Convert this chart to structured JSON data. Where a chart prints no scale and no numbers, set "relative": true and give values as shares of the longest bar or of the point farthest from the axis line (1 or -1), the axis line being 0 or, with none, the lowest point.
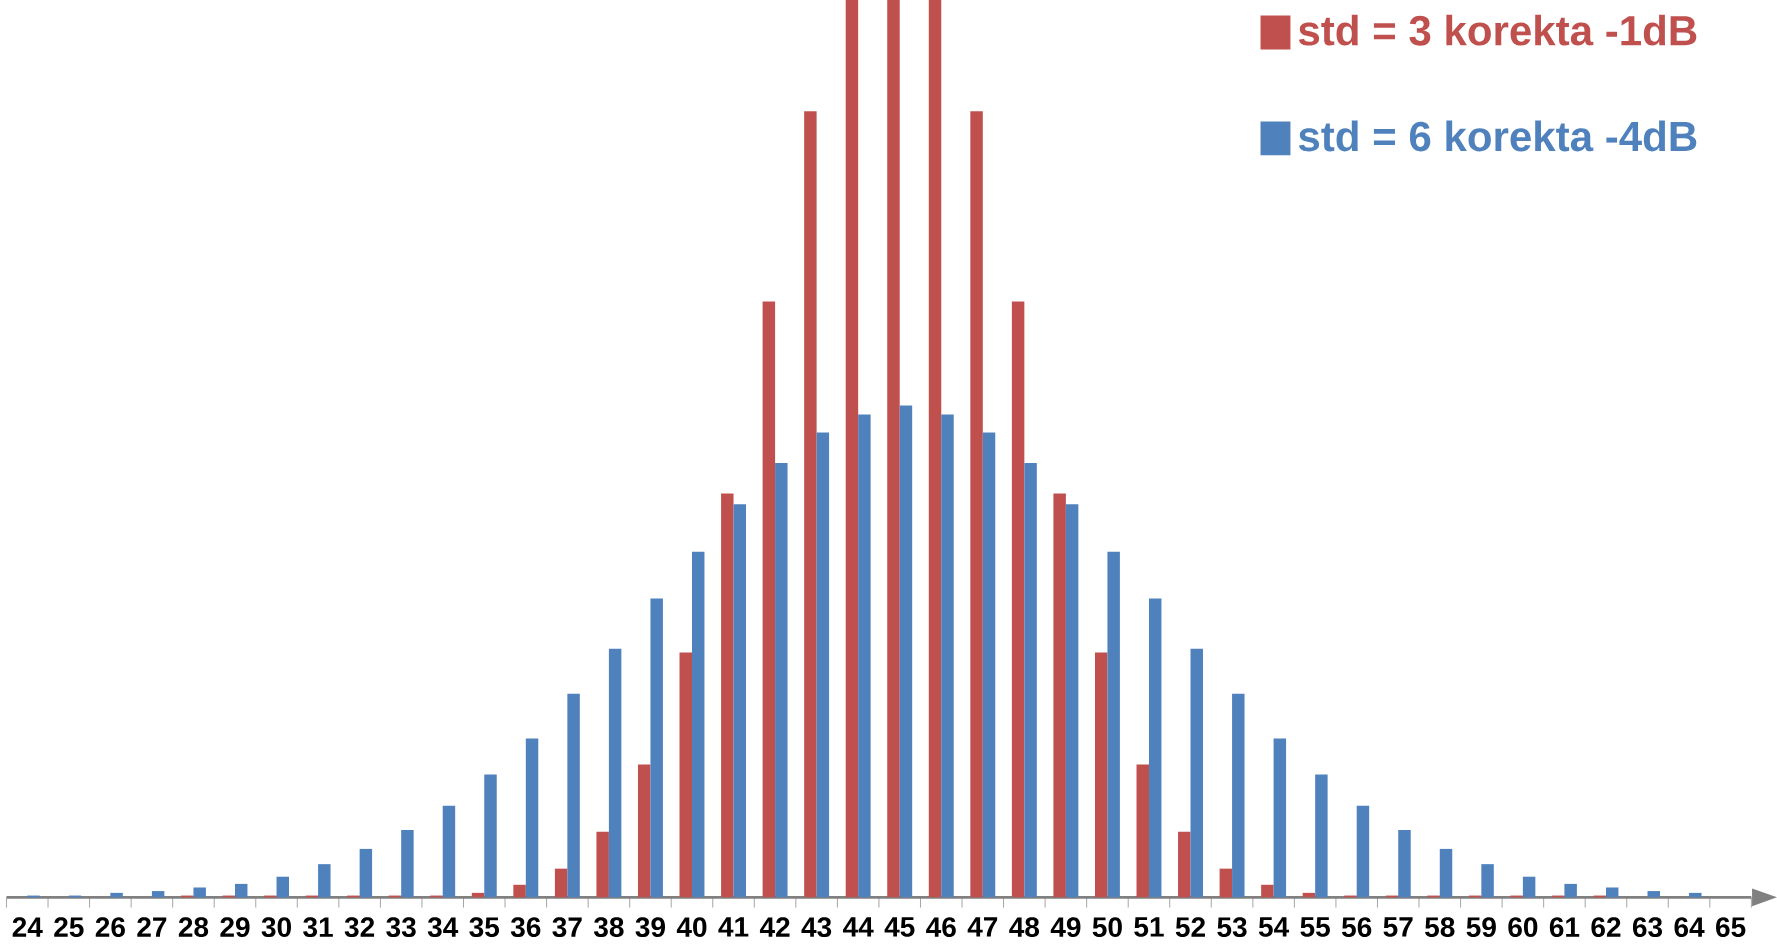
{
  "chart_data": {
    "type": "bar",
    "relative": true,
    "legend": "top right",
    "categories": [
      "24",
      "25",
      "26",
      "27",
      "28",
      "29",
      "30",
      "31",
      "32",
      "33",
      "34",
      "35",
      "36",
      "37",
      "38",
      "39",
      "40",
      "41",
      "42",
      "43",
      "44",
      "45",
      "46",
      "47",
      "48",
      "49",
      "50",
      "51",
      "52",
      "53",
      "54",
      "55",
      "56",
      "57",
      "58",
      "59",
      "60",
      "61",
      "62",
      "63",
      "64",
      "65"
    ],
    "series": [
      {
        "name": "std = 3 korekta -1dB",
        "color": "#c0504d",
        "values": [
          0,
          0,
          0,
          0,
          0.002,
          0.002,
          0.002,
          0.002,
          0.002,
          0.002,
          0.002,
          0.005,
          0.014,
          0.032,
          0.073,
          0.148,
          0.273,
          0.45,
          0.664,
          0.876,
          1,
          1,
          1,
          0.876,
          0.664,
          0.45,
          0.273,
          0.148,
          0.073,
          0.032,
          0.014,
          0.005,
          0.002,
          0.002,
          0.002,
          0.002,
          0.002,
          0.002,
          0.002,
          0,
          0,
          0
        ]
      },
      {
        "name": "std = 6 korekta -4dB",
        "color": "#4f81bd",
        "values": [
          0.002,
          0.002,
          0.005,
          0.007,
          0.011,
          0.015,
          0.023,
          0.037,
          0.054,
          0.075,
          0.102,
          0.137,
          0.177,
          0.227,
          0.277,
          0.333,
          0.385,
          0.438,
          0.484,
          0.518,
          0.538,
          0.548,
          0.538,
          0.518,
          0.484,
          0.438,
          0.385,
          0.333,
          0.277,
          0.227,
          0.177,
          0.137,
          0.102,
          0.075,
          0.054,
          0.037,
          0.023,
          0.015,
          0.011,
          0.007,
          0.005,
          0
        ]
      }
    ]
  }
}
